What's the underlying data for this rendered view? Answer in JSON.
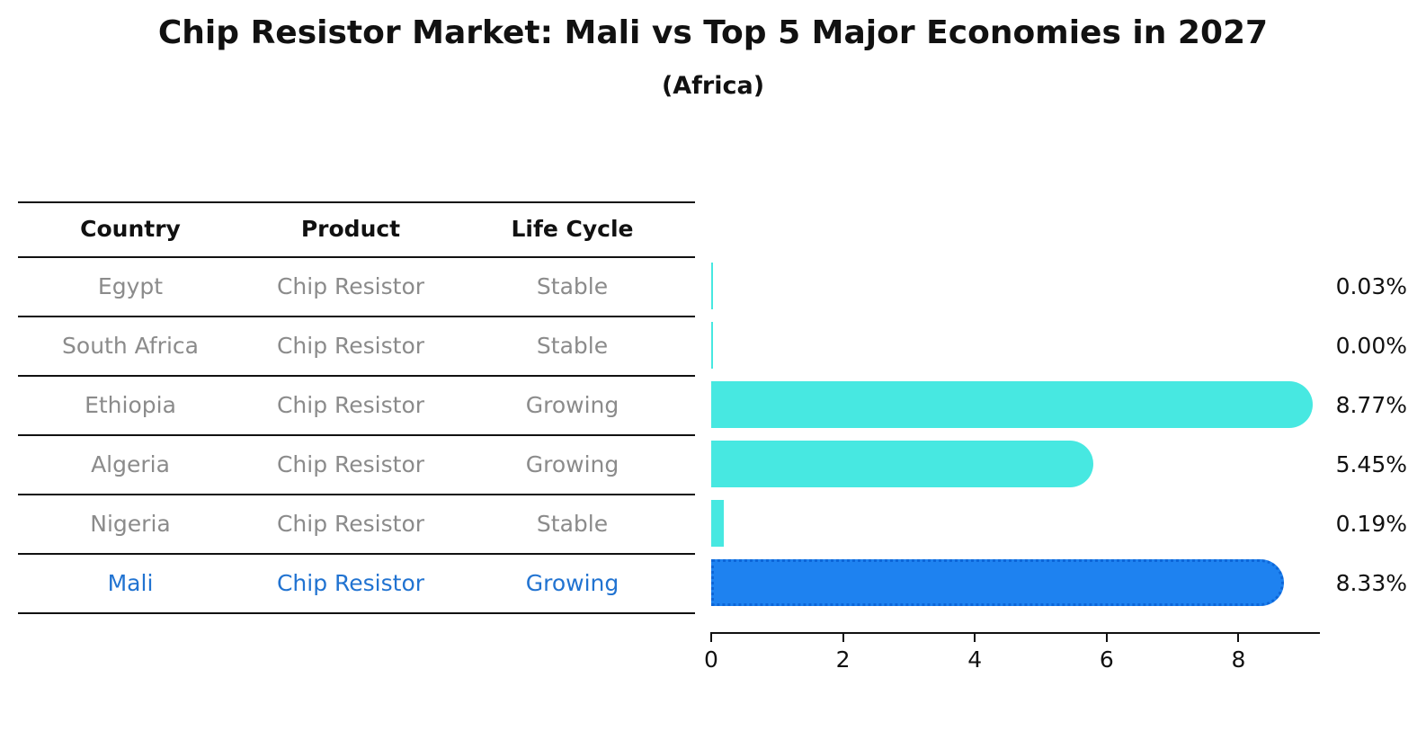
{
  "title": "Chip Resistor Market: Mali vs Top 5 Major Economies in 2027",
  "subtitle": "(Africa)",
  "table": {
    "headers": [
      "Country",
      "Product",
      "Life Cycle"
    ],
    "rows": [
      {
        "country": "Egypt",
        "product": "Chip Resistor",
        "life_cycle": "Stable",
        "value": 0.03,
        "value_label": "0.03%",
        "highlight": false
      },
      {
        "country": "South Africa",
        "product": "Chip Resistor",
        "life_cycle": "Stable",
        "value": 0.0,
        "value_label": "0.00%",
        "highlight": false
      },
      {
        "country": "Ethiopia",
        "product": "Chip Resistor",
        "life_cycle": "Growing",
        "value": 8.77,
        "value_label": "8.77%",
        "highlight": false
      },
      {
        "country": "Algeria",
        "product": "Chip Resistor",
        "life_cycle": "Growing",
        "value": 5.45,
        "value_label": "5.45%",
        "highlight": false
      },
      {
        "country": "Nigeria",
        "product": "Chip Resistor",
        "life_cycle": "Stable",
        "value": 0.19,
        "value_label": "0.19%",
        "highlight": false
      },
      {
        "country": "Mali",
        "product": "Chip Resistor",
        "life_cycle": "Growing",
        "value": 8.33,
        "value_label": "8.33%",
        "highlight": true
      }
    ]
  },
  "chart_data": {
    "type": "bar",
    "orientation": "horizontal",
    "title": "Chip Resistor Market: Mali vs Top 5 Major Economies in 2027",
    "subtitle": "(Africa)",
    "categories": [
      "Egypt",
      "South Africa",
      "Ethiopia",
      "Algeria",
      "Nigeria",
      "Mali"
    ],
    "values": [
      0.03,
      0.0,
      8.77,
      5.45,
      0.19,
      8.33
    ],
    "value_labels": [
      "0.03%",
      "0.00%",
      "8.77%",
      "5.45%",
      "0.19%",
      "8.33%"
    ],
    "xlabel": "",
    "ylabel": "",
    "xlim": [
      0,
      9.24
    ],
    "x_ticks": [
      0,
      2,
      4,
      6,
      8
    ],
    "grid": false,
    "legend": false,
    "highlight_index": 5,
    "bar_color": "#47E8E1",
    "highlight_bar_color": "#1E82F0",
    "highlight_text_color": "#2173d1",
    "row_text_color": "#8b8b8b"
  }
}
